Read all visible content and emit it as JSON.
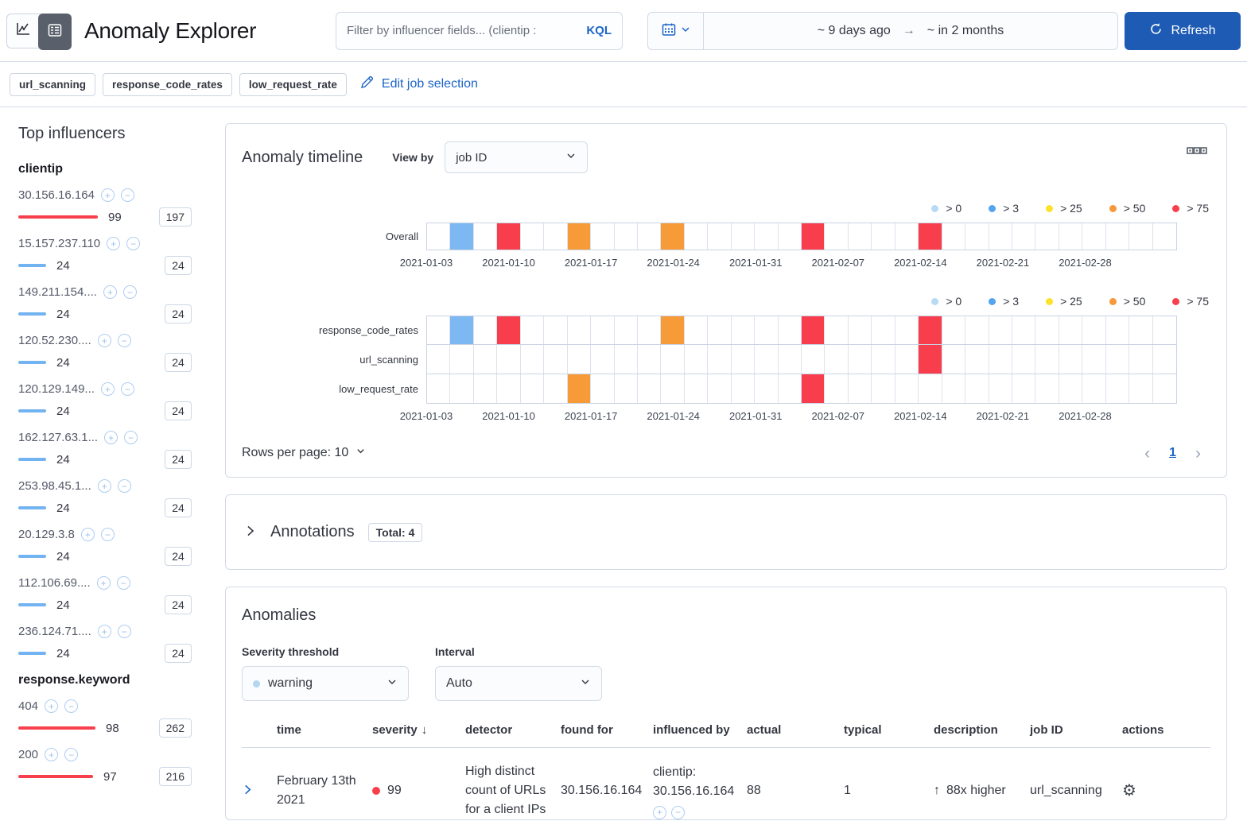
{
  "header": {
    "title": "Anomaly Explorer",
    "filter": {
      "placeholder": "Filter by influencer fields... (clientip :",
      "kql_label": "KQL"
    },
    "time_range": {
      "from": "~ 9 days ago",
      "to": "~ in 2 months"
    },
    "refresh_label": "Refresh"
  },
  "jobs": {
    "badges": [
      "url_scanning",
      "response_code_rates",
      "low_request_rate"
    ],
    "edit_label": "Edit job selection"
  },
  "influencers": {
    "title": "Top influencers",
    "groups": [
      {
        "field": "clientip",
        "items": [
          {
            "name": "30.156.16.164",
            "score": "99",
            "total": "197",
            "color": "red",
            "bar": 100
          },
          {
            "name": "15.157.237.110",
            "score": "24",
            "total": "24",
            "color": "blue",
            "bar": 35
          },
          {
            "name": "149.211.154....",
            "score": "24",
            "total": "24",
            "color": "blue",
            "bar": 35
          },
          {
            "name": "120.52.230....",
            "score": "24",
            "total": "24",
            "color": "blue",
            "bar": 35
          },
          {
            "name": "120.129.149...",
            "score": "24",
            "total": "24",
            "color": "blue",
            "bar": 35
          },
          {
            "name": "162.127.63.1...",
            "score": "24",
            "total": "24",
            "color": "blue",
            "bar": 35
          },
          {
            "name": "253.98.45.1...",
            "score": "24",
            "total": "24",
            "color": "blue",
            "bar": 35
          },
          {
            "name": "20.129.3.8",
            "score": "24",
            "total": "24",
            "color": "blue",
            "bar": 35
          },
          {
            "name": "112.106.69....",
            "score": "24",
            "total": "24",
            "color": "blue",
            "bar": 35
          },
          {
            "name": "236.124.71....",
            "score": "24",
            "total": "24",
            "color": "blue",
            "bar": 35
          }
        ]
      },
      {
        "field": "response.keyword",
        "items": [
          {
            "name": "404",
            "score": "98",
            "total": "262",
            "color": "red",
            "bar": 97
          },
          {
            "name": "200",
            "score": "97",
            "total": "216",
            "color": "red",
            "bar": 94
          }
        ]
      }
    ]
  },
  "timeline": {
    "title": "Anomaly timeline",
    "view_by_label": "View by",
    "view_by_value": "job ID",
    "legend": [
      {
        "label": "> 0",
        "color": "#b7daf5"
      },
      {
        "label": "> 3",
        "color": "#54a4f0"
      },
      {
        "label": "> 25",
        "color": "#fce32b"
      },
      {
        "label": "> 50",
        "color": "#f7993b"
      },
      {
        "label": "> 75",
        "color": "#f8404d"
      }
    ],
    "cells_per_lane": 32,
    "dates": [
      "2021-01-03",
      "2021-01-10",
      "2021-01-17",
      "2021-01-24",
      "2021-01-31",
      "2021-02-07",
      "2021-02-14",
      "2021-02-21",
      "2021-02-28"
    ],
    "overall_lanes": [
      {
        "label": "Overall",
        "cells": {
          "1": "blue",
          "3": "red",
          "6": "orange",
          "10": "orange",
          "16": "red",
          "21": "red"
        }
      }
    ],
    "job_lanes": [
      {
        "label": "response_code_rates",
        "cells": {
          "1": "blue",
          "3": "red",
          "10": "orange",
          "16": "red",
          "21": "red"
        }
      },
      {
        "label": "url_scanning",
        "cells": {
          "21": "red"
        }
      },
      {
        "label": "low_request_rate",
        "cells": {
          "6": "orange",
          "16": "red"
        }
      }
    ],
    "rows_per_page_label": "Rows per page: 10",
    "page": "1"
  },
  "annotations": {
    "title": "Annotations",
    "total_badge": "Total: 4"
  },
  "anomalies": {
    "title": "Anomalies",
    "severity_label": "Severity threshold",
    "severity_value": "warning",
    "interval_label": "Interval",
    "interval_value": "Auto",
    "columns": [
      "time",
      "severity",
      "detector",
      "found for",
      "influenced by",
      "actual",
      "typical",
      "description",
      "job ID",
      "actions"
    ],
    "rows": [
      {
        "time": "February 13th 2021",
        "severity": "99",
        "detector": "High distinct count of URLs for a client IPs",
        "found_for": "30.156.16.164",
        "influenced_by": "clientip: 30.156.16.164",
        "actual": "88",
        "typical": "1",
        "description": "88x higher",
        "job_id": "url_scanning"
      }
    ]
  },
  "colors": {
    "accent_blue": "#1c64c8",
    "button_blue": "#1d5bb4",
    "swimlane": {
      "blue": "#7db8f2",
      "orange": "#f79b38",
      "red": "#f83e4d",
      "yellow": "#fce32b",
      "pale": "#b7daf5"
    },
    "bar": {
      "red": "#f8404d",
      "blue": "#72b3f1"
    }
  }
}
